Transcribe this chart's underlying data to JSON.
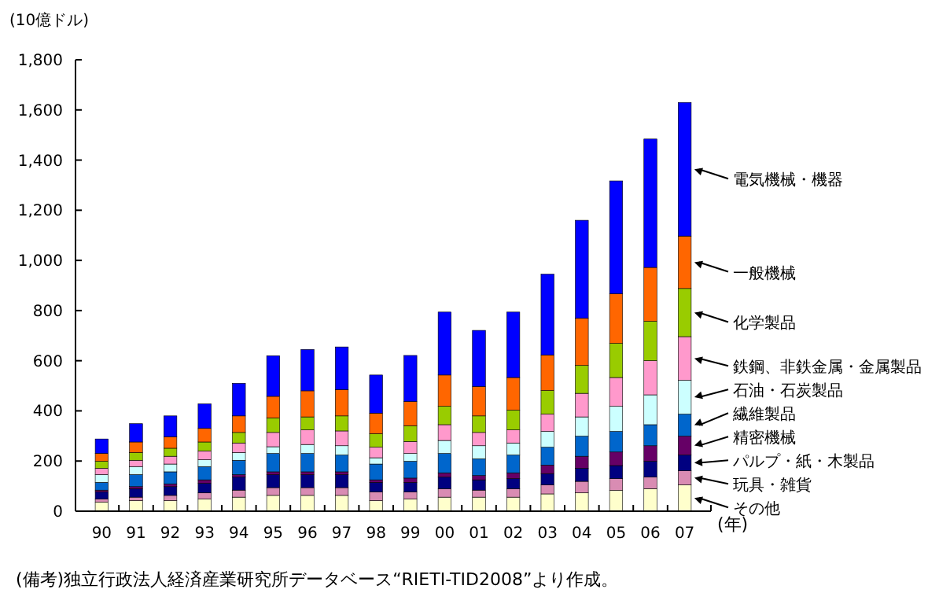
{
  "chart_data": {
    "type": "bar",
    "stacked": true,
    "ylabel": "(10億ドル)",
    "xlabel": "(年)",
    "categories": [
      "90",
      "91",
      "92",
      "93",
      "94",
      "95",
      "96",
      "97",
      "98",
      "99",
      "00",
      "01",
      "02",
      "03",
      "04",
      "05",
      "06",
      "07"
    ],
    "ylim": [
      0,
      1800
    ],
    "yticks": [
      0,
      {
        "value": 200,
        "label": "200"
      },
      {
        "value": 400,
        "label": "400"
      },
      {
        "value": 600,
        "label": "600"
      },
      {
        "value": 800,
        "label": "800"
      },
      {
        "value": 1000,
        "label": "1,000"
      },
      {
        "value": 1200,
        "label": "1,200"
      },
      {
        "value": 1400,
        "label": "1,400"
      },
      {
        "value": 1600,
        "label": "1,600"
      },
      {
        "value": 1800,
        "label": "1,800"
      }
    ],
    "legend": "right",
    "grid": false,
    "series": [
      {
        "name": "その他",
        "color": "#ffffcc",
        "values": [
          36,
          42,
          42,
          48,
          56,
          63,
          63,
          63,
          42,
          48,
          56,
          56,
          56,
          69,
          73,
          83,
          90,
          105
        ]
      },
      {
        "name": "玩具・雑貨",
        "color": "#d98cb3",
        "values": [
          12,
          14,
          21,
          25,
          28,
          31,
          31,
          31,
          35,
          29,
          34,
          28,
          34,
          36,
          46,
          47,
          46,
          56
        ]
      },
      {
        "name": "パルプ・紙・木製品",
        "color": "#000080",
        "values": [
          29,
          34,
          35,
          38,
          52,
          52,
          52,
          52,
          38,
          38,
          46,
          41,
          40,
          45,
          52,
          52,
          63,
          63
        ]
      },
      {
        "name": "精密機械",
        "color": "#660066",
        "values": [
          7,
          8,
          11,
          14,
          10,
          11,
          11,
          11,
          10,
          17,
          17,
          17,
          23,
          34,
          48,
          54,
          62,
          75
        ]
      },
      {
        "name": "繊維製品",
        "color": "#0066cc",
        "values": [
          31,
          48,
          48,
          53,
          57,
          73,
          73,
          67,
          63,
          67,
          77,
          67,
          71,
          71,
          80,
          82,
          84,
          88
        ]
      },
      {
        "name": "石油・石炭製品",
        "color": "#ccffff",
        "values": [
          31,
          32,
          31,
          27,
          31,
          27,
          36,
          37,
          25,
          31,
          52,
          52,
          48,
          63,
          77,
          100,
          119,
          135
        ]
      },
      {
        "name": "鉄鋼、非鉄金属・金属製品",
        "color": "#ff99cc",
        "values": [
          25,
          25,
          31,
          35,
          38,
          57,
          58,
          59,
          42,
          48,
          63,
          53,
          52,
          69,
          94,
          115,
          136,
          174
        ]
      },
      {
        "name": "化学製品",
        "color": "#99cc00",
        "values": [
          28,
          31,
          32,
          36,
          42,
          58,
          52,
          60,
          54,
          63,
          73,
          66,
          79,
          94,
          111,
          136,
          157,
          192
        ]
      },
      {
        "name": "一般機械",
        "color": "#ff6600",
        "values": [
          31,
          42,
          46,
          54,
          66,
          86,
          104,
          105,
          82,
          96,
          125,
          117,
          130,
          142,
          188,
          198,
          215,
          209
        ]
      },
      {
        "name": "電気機械・機器",
        "color": "#0000ff",
        "values": [
          58,
          73,
          83,
          98,
          130,
          162,
          165,
          170,
          152,
          184,
          251,
          224,
          261,
          322,
          391,
          450,
          512,
          533
        ]
      }
    ],
    "annotations": [
      "(備考)独立行政法人経済産業研究所データベース“RIETI-TID2008”より作成。"
    ]
  }
}
